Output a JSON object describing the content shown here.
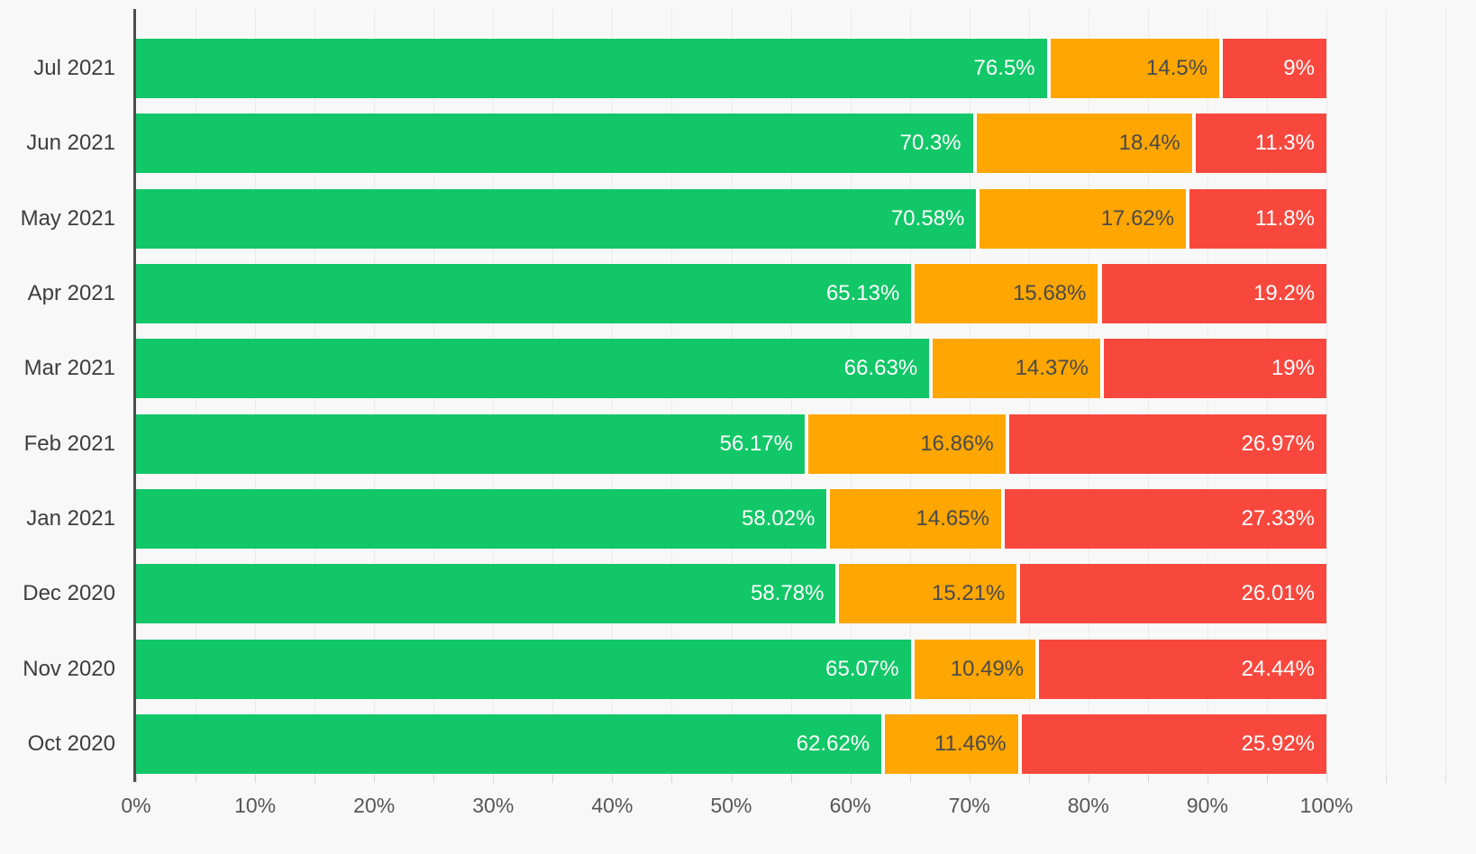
{
  "chart_data": {
    "type": "bar",
    "orientation": "horizontal",
    "stacked": true,
    "title": "",
    "legend": false,
    "grid": true,
    "background_color": "#F8F8F8",
    "axis_line_color": "#4D4D4D",
    "categories": [
      "Jul 2021",
      "Jun 2021",
      "May 2021",
      "Apr 2021",
      "Mar 2021",
      "Feb 2021",
      "Jan 2021",
      "Dec 2020",
      "Nov 2020",
      "Oct 2020"
    ],
    "series": [
      {
        "name": "green",
        "color": "#11C767",
        "label_color": "#FFFFFF",
        "values": [
          76.5,
          70.3,
          70.58,
          65.13,
          66.63,
          56.17,
          58.02,
          58.78,
          65.07,
          62.62
        ],
        "labels": [
          "76.5%",
          "70.3%",
          "70.58%",
          "65.13%",
          "66.63%",
          "56.17%",
          "58.02%",
          "58.78%",
          "65.07%",
          "62.62%"
        ]
      },
      {
        "name": "orange",
        "color": "#FFA600",
        "label_color": "#4A4A4A",
        "values": [
          14.5,
          18.4,
          17.62,
          15.68,
          14.37,
          16.86,
          14.65,
          15.21,
          10.49,
          11.46
        ],
        "labels": [
          "14.5%",
          "18.4%",
          "17.62%",
          "15.68%",
          "14.37%",
          "16.86%",
          "14.65%",
          "15.21%",
          "10.49%",
          "11.46%"
        ]
      },
      {
        "name": "red",
        "color": "#F8483E",
        "label_color": "#FFFFFF",
        "values": [
          9,
          11.3,
          11.8,
          19.2,
          19,
          26.97,
          27.33,
          26.01,
          24.44,
          25.92
        ],
        "labels": [
          "9%",
          "11.3%",
          "11.8%",
          "19.2%",
          "19%",
          "26.97%",
          "27.33%",
          "26.01%",
          "24.44%",
          "25.92%"
        ]
      }
    ],
    "x_axis": {
      "min": 0,
      "max": 100,
      "tick_labels": [
        "0%",
        "10%",
        "20%",
        "30%",
        "40%",
        "50%",
        "60%",
        "70%",
        "80%",
        "90%",
        "100%"
      ]
    }
  }
}
